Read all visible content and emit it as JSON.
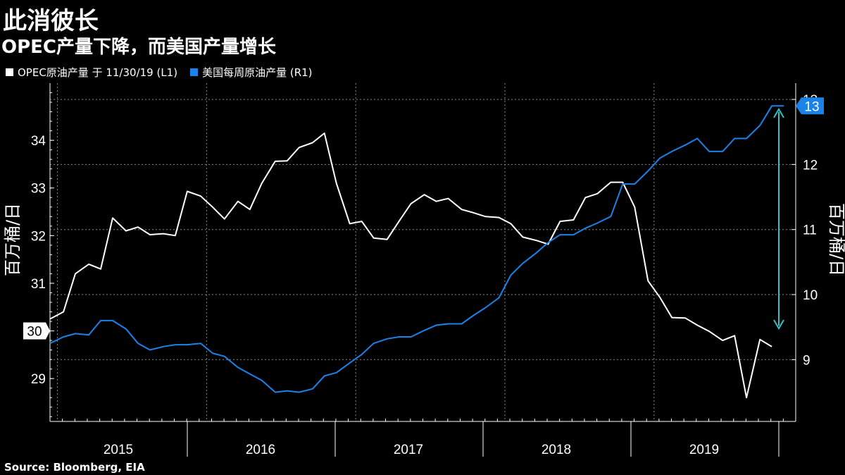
{
  "title": "此消彼长",
  "subtitle": "OPEC产量下降，而美国产量增长",
  "legend": [
    {
      "label": "OPEC原油产量 于 11/30/19 (L1)",
      "color": "#ffffff"
    },
    {
      "label": "美国每周原油产量 (R1)",
      "color": "#1a82e8"
    }
  ],
  "source": "Source: Bloomberg, EIA",
  "chart_data": {
    "type": "line",
    "x_labels": [
      "2015",
      "2016",
      "2017",
      "2018",
      "2019"
    ],
    "x_range": [
      2014.95,
      2019.95
    ],
    "left_axis": {
      "label": "百万桶/日",
      "range": [
        28.1,
        35.2
      ],
      "ticks": [
        29,
        30,
        31,
        32,
        33,
        34
      ],
      "current_value_label": "30"
    },
    "right_axis": {
      "label": "百万桶/日",
      "range": [
        8.05,
        13.25
      ],
      "ticks": [
        9,
        10,
        11,
        12,
        13
      ],
      "current_value_label": "13"
    },
    "grid": true,
    "legend_position": "top-left",
    "annotation": "double-headed arrow from about 9.5 to 12.9 at late 2019 (right axis)",
    "series": [
      {
        "name": "OPEC原油产量 于 11/30/19 (L1)",
        "axis": "left",
        "color": "#ffffff",
        "x": [
          2014.95,
          2015.04,
          2015.12,
          2015.21,
          2015.29,
          2015.37,
          2015.46,
          2015.54,
          2015.62,
          2015.71,
          2015.79,
          2015.87,
          2015.96,
          2016.04,
          2016.12,
          2016.21,
          2016.29,
          2016.37,
          2016.46,
          2016.54,
          2016.62,
          2016.71,
          2016.79,
          2016.87,
          2016.96,
          2017.04,
          2017.12,
          2017.21,
          2017.29,
          2017.37,
          2017.46,
          2017.54,
          2017.62,
          2017.71,
          2017.79,
          2017.87,
          2017.96,
          2018.04,
          2018.12,
          2018.21,
          2018.29,
          2018.37,
          2018.46,
          2018.54,
          2018.62,
          2018.71,
          2018.79,
          2018.87,
          2018.96,
          2019.04,
          2019.12,
          2019.21,
          2019.29,
          2019.37,
          2019.46,
          2019.54,
          2019.62,
          2019.71,
          2019.79,
          2019.87
        ],
        "values": [
          30.25,
          30.4,
          31.2,
          31.4,
          31.3,
          32.37,
          32.1,
          32.18,
          32.02,
          32.04,
          32.0,
          32.93,
          32.83,
          32.6,
          32.35,
          32.72,
          32.55,
          33.1,
          33.56,
          33.57,
          33.85,
          33.95,
          34.15,
          33.1,
          32.25,
          32.3,
          31.95,
          31.92,
          32.3,
          32.67,
          32.86,
          32.72,
          32.78,
          32.55,
          32.48,
          32.4,
          32.38,
          32.25,
          31.97,
          31.9,
          31.82,
          32.3,
          32.33,
          32.8,
          32.88,
          33.12,
          33.12,
          32.6,
          31.05,
          30.7,
          30.28,
          30.27,
          30.12,
          29.99,
          29.8,
          29.9,
          28.6,
          29.82,
          29.67,
          null
        ]
      },
      {
        "name": "美国每周原油产量 (R1)",
        "axis": "right",
        "color": "#1a82e8",
        "x": [
          2014.95,
          2015.04,
          2015.12,
          2015.21,
          2015.29,
          2015.37,
          2015.46,
          2015.54,
          2015.62,
          2015.71,
          2015.79,
          2015.87,
          2015.96,
          2016.04,
          2016.12,
          2016.21,
          2016.29,
          2016.37,
          2016.46,
          2016.54,
          2016.62,
          2016.71,
          2016.79,
          2016.87,
          2016.96,
          2017.04,
          2017.12,
          2017.21,
          2017.29,
          2017.37,
          2017.46,
          2017.54,
          2017.62,
          2017.71,
          2017.79,
          2017.87,
          2017.96,
          2018.04,
          2018.12,
          2018.21,
          2018.29,
          2018.37,
          2018.46,
          2018.54,
          2018.62,
          2018.71,
          2018.79,
          2018.87,
          2018.96,
          2019.04,
          2019.12,
          2019.21,
          2019.29,
          2019.37,
          2019.46,
          2019.54,
          2019.62,
          2019.71,
          2019.79,
          2019.87
        ],
        "values": [
          9.25,
          9.35,
          9.4,
          9.38,
          9.6,
          9.6,
          9.47,
          9.25,
          9.15,
          9.2,
          9.23,
          9.23,
          9.25,
          9.1,
          9.05,
          8.88,
          8.78,
          8.68,
          8.5,
          8.52,
          8.5,
          8.55,
          8.75,
          8.8,
          8.95,
          9.08,
          9.25,
          9.32,
          9.35,
          9.35,
          9.45,
          9.53,
          9.55,
          9.55,
          9.68,
          9.8,
          9.95,
          10.3,
          10.48,
          10.64,
          10.8,
          10.92,
          10.92,
          11.02,
          11.1,
          11.2,
          11.7,
          11.7,
          11.9,
          12.1,
          12.2,
          12.3,
          12.4,
          12.2,
          12.2,
          12.4,
          12.4,
          12.6,
          12.9,
          12.9
        ]
      }
    ]
  }
}
